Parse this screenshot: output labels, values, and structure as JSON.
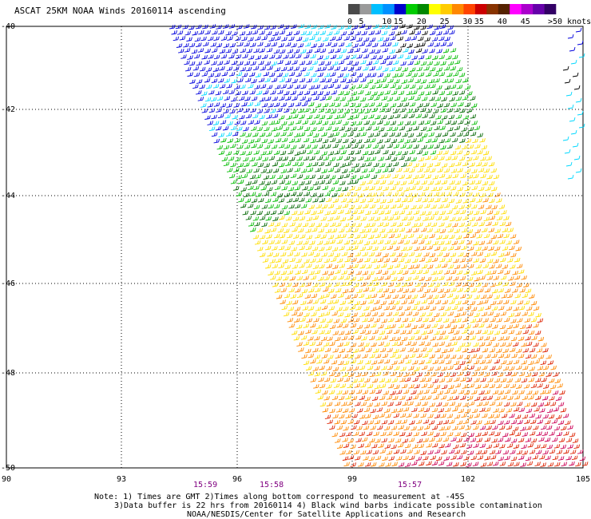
{
  "title": "ASCAT 25KM NOAA Winds 20160114 ascending",
  "legend": {
    "unit_label": ">50 knots",
    "bins": [
      {
        "label": "0",
        "color": "#4a4a4a"
      },
      {
        "label": "5",
        "color": "#9a9a9a"
      },
      {
        "label": "",
        "color": "#00bfff"
      },
      {
        "label": "10",
        "color": "#0090ff"
      },
      {
        "label": "15",
        "color": "#0000cc"
      },
      {
        "label": "",
        "color": "#00cc00"
      },
      {
        "label": "20",
        "color": "#008800"
      },
      {
        "label": "",
        "color": "#ffff00"
      },
      {
        "label": "25",
        "color": "#ffcc00"
      },
      {
        "label": "",
        "color": "#ff8800"
      },
      {
        "label": "30",
        "color": "#ff4400"
      },
      {
        "label": "35",
        "color": "#cc0000"
      },
      {
        "label": "",
        "color": "#883300"
      },
      {
        "label": "40",
        "color": "#552200"
      },
      {
        "label": "",
        "color": "#ff00ff"
      },
      {
        "label": "45",
        "color": "#aa00cc"
      },
      {
        "label": "",
        "color": "#6600aa"
      },
      {
        "label": "",
        "color": "#330066"
      }
    ]
  },
  "axes": {
    "x_ticks": [
      "90",
      "93",
      "96",
      "99",
      "102",
      "105"
    ],
    "y_ticks": [
      "-40",
      "-42",
      "-44",
      "-46",
      "-48",
      "-50"
    ]
  },
  "times": [
    "15:59",
    "15:58",
    "15:57"
  ],
  "notes": [
    "Note: 1) Times are GMT 2)Times along bottom correspond to measurement at -45S",
    "3)Data buffer is 22 hrs from 20160114 4) Black wind barbs indicate possible contamination",
    "NOAA/NESDIS/Center for Satellite Applications and Research"
  ],
  "colors": {
    "cyan": "#00d8ff",
    "blue": "#0000dd",
    "green": "#00bb00",
    "darkgreen": "#006600",
    "yellow": "#ffdd00",
    "orange": "#ff8800",
    "red": "#dd2200",
    "magenta": "#cc0055",
    "black": "#000000",
    "time_label": "#800080"
  }
}
